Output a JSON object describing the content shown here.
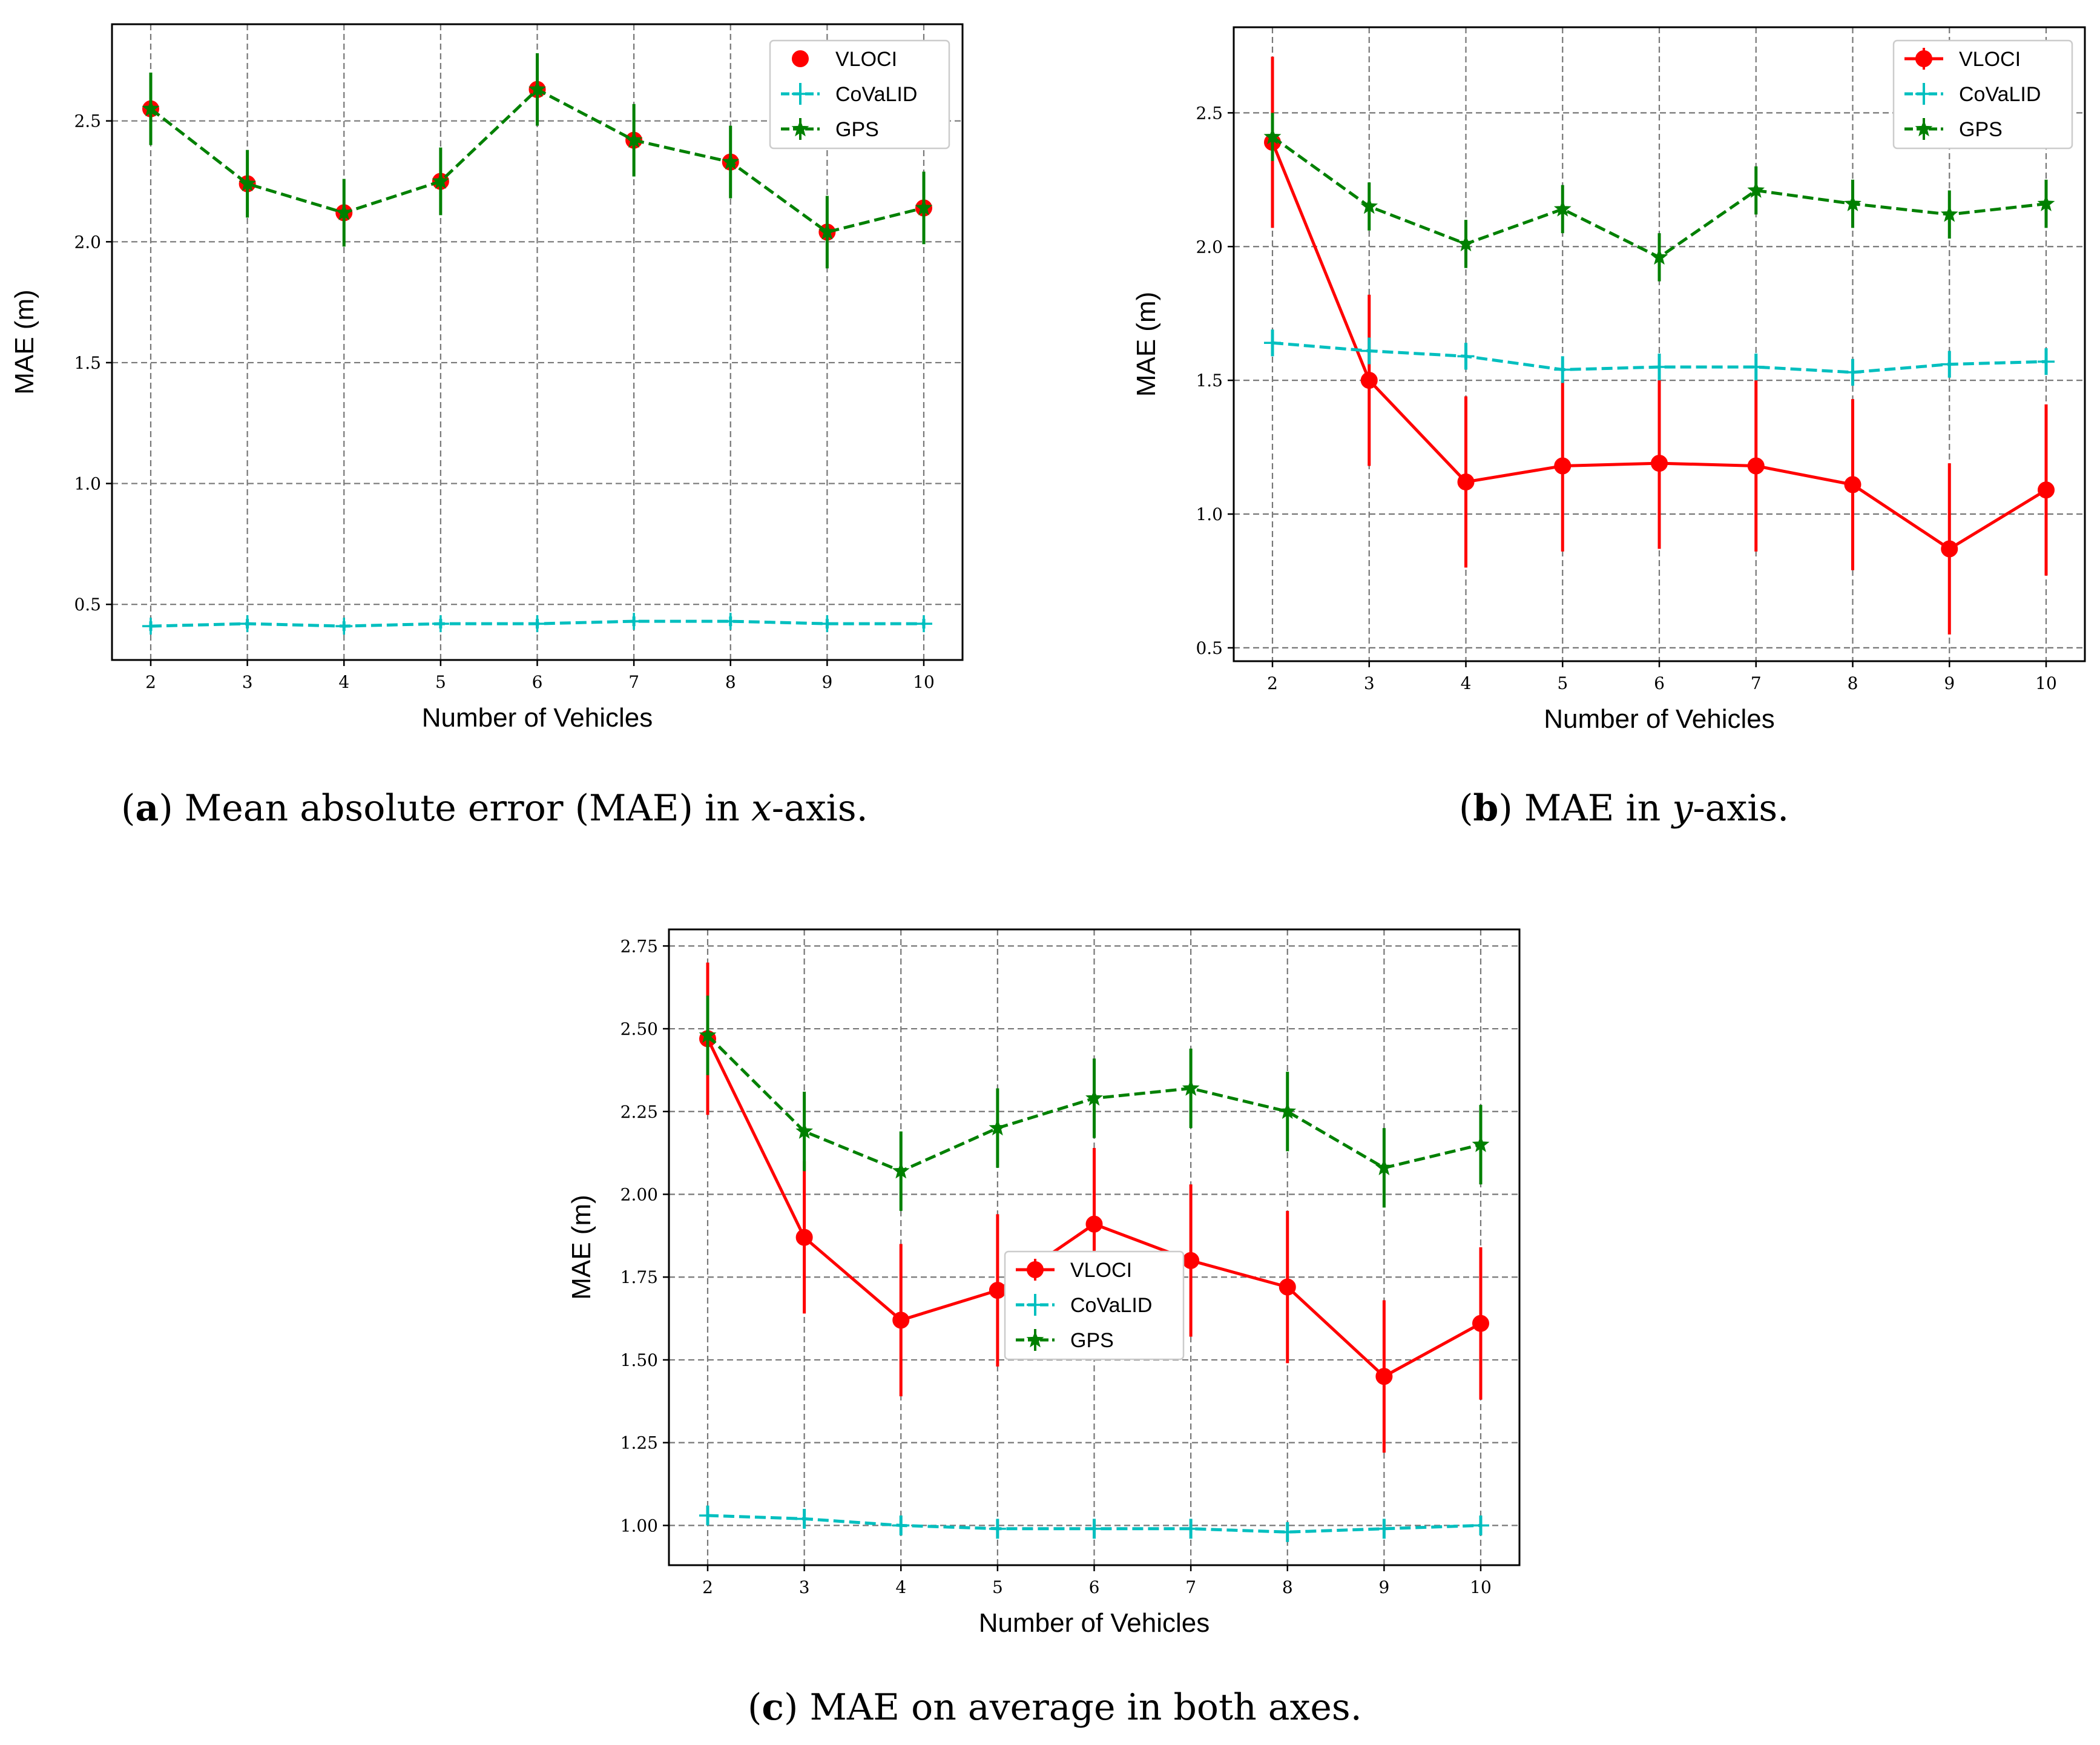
{
  "chart_data": [
    {
      "id": "a",
      "type": "line",
      "xlabel": "Number of Vehicles",
      "ylabel": "MAE (m)",
      "categories": [
        2,
        3,
        4,
        5,
        6,
        7,
        8,
        9,
        10
      ],
      "ylim": [
        0.27,
        2.9
      ],
      "yticks": [
        0.5,
        1.0,
        1.5,
        2.0,
        2.5
      ],
      "ytick_labels": [
        "0.5",
        "1.0",
        "1.5",
        "2.0",
        "2.5"
      ],
      "legend_position": "top-right",
      "series": [
        {
          "name": "VLOCI",
          "color": "#ff0000",
          "style": "solid-circle",
          "show_line": false,
          "values": [
            2.55,
            2.24,
            2.12,
            2.25,
            2.63,
            2.42,
            2.33,
            2.04,
            2.14
          ],
          "errors": [
            0.0,
            0,
            0,
            0,
            0,
            0,
            0,
            0,
            0
          ]
        },
        {
          "name": "CoVaLID",
          "color": "#00bfbf",
          "style": "dashed-plus",
          "values": [
            0.41,
            0.42,
            0.41,
            0.42,
            0.42,
            0.43,
            0.43,
            0.42,
            0.42
          ],
          "errors": [
            0.02,
            0.02,
            0.02,
            0.02,
            0.02,
            0.02,
            0.02,
            0.02,
            0.02
          ]
        },
        {
          "name": "GPS",
          "color": "#008000",
          "style": "dashed-star",
          "values": [
            2.55,
            2.24,
            2.12,
            2.25,
            2.63,
            2.42,
            2.33,
            2.04,
            2.14
          ],
          "errors": [
            0.15,
            0.14,
            0.14,
            0.14,
            0.15,
            0.15,
            0.15,
            0.15,
            0.15
          ]
        }
      ],
      "caption": {
        "tag": "a",
        "before": " Mean absolute error (MAE) in ",
        "var": "x",
        "after": "-axis."
      }
    },
    {
      "id": "b",
      "type": "line",
      "xlabel": "Number of Vehicles",
      "ylabel": "MAE (m)",
      "categories": [
        2,
        3,
        4,
        5,
        6,
        7,
        8,
        9,
        10
      ],
      "ylim": [
        0.45,
        2.82
      ],
      "yticks": [
        0.5,
        1.0,
        1.5,
        2.0,
        2.5
      ],
      "ytick_labels": [
        "0.5",
        "1.0",
        "1.5",
        "2.0",
        "2.5"
      ],
      "legend_position": "top-right",
      "series": [
        {
          "name": "VLOCI",
          "color": "#ff0000",
          "style": "solid-circle",
          "values": [
            2.39,
            1.5,
            1.12,
            1.18,
            1.19,
            1.18,
            1.11,
            0.87,
            1.09
          ],
          "errors": [
            0.32,
            0.32,
            0.32,
            0.32,
            0.32,
            0.32,
            0.32,
            0.32,
            0.32
          ]
        },
        {
          "name": "CoVaLID",
          "color": "#00bfbf",
          "style": "dashed-plus",
          "values": [
            1.64,
            1.61,
            1.59,
            1.54,
            1.55,
            1.55,
            1.53,
            1.56,
            1.57
          ],
          "errors": [
            0.05,
            0.05,
            0.05,
            0.05,
            0.05,
            0.05,
            0.05,
            0.05,
            0.05
          ]
        },
        {
          "name": "GPS",
          "color": "#008000",
          "style": "dashed-star",
          "values": [
            2.41,
            2.15,
            2.01,
            2.14,
            1.96,
            2.21,
            2.16,
            2.12,
            2.16
          ],
          "errors": [
            0.09,
            0.09,
            0.09,
            0.09,
            0.09,
            0.09,
            0.09,
            0.09,
            0.09
          ]
        }
      ],
      "caption": {
        "tag": "b",
        "before": " MAE in ",
        "var": "y",
        "after": "-axis."
      }
    },
    {
      "id": "c",
      "type": "line",
      "xlabel": "Number of Vehicles",
      "ylabel": "MAE (m)",
      "categories": [
        2,
        3,
        4,
        5,
        6,
        7,
        8,
        9,
        10
      ],
      "ylim": [
        0.88,
        2.8
      ],
      "yticks": [
        1.0,
        1.25,
        1.5,
        1.75,
        2.0,
        2.25,
        2.5,
        2.75
      ],
      "ytick_labels": [
        "1.00",
        "1.25",
        "1.50",
        "1.75",
        "2.00",
        "2.25",
        "2.50",
        "2.75"
      ],
      "legend_position": "center",
      "series": [
        {
          "name": "VLOCI",
          "color": "#ff0000",
          "style": "solid-circle",
          "values": [
            2.47,
            1.87,
            1.62,
            1.71,
            1.91,
            1.8,
            1.72,
            1.45,
            1.61
          ],
          "errors": [
            0.23,
            0.23,
            0.23,
            0.23,
            0.23,
            0.23,
            0.23,
            0.23,
            0.23
          ]
        },
        {
          "name": "CoVaLID",
          "color": "#00bfbf",
          "style": "dashed-plus",
          "values": [
            1.03,
            1.02,
            1.0,
            0.99,
            0.99,
            0.99,
            0.98,
            0.99,
            1.0
          ],
          "errors": [
            0.03,
            0.03,
            0.03,
            0.03,
            0.03,
            0.03,
            0.03,
            0.03,
            0.03
          ]
        },
        {
          "name": "GPS",
          "color": "#008000",
          "style": "dashed-star",
          "values": [
            2.48,
            2.19,
            2.07,
            2.2,
            2.29,
            2.32,
            2.25,
            2.08,
            2.15
          ],
          "errors": [
            0.12,
            0.12,
            0.12,
            0.12,
            0.12,
            0.12,
            0.12,
            0.12,
            0.12
          ]
        }
      ],
      "caption": {
        "tag": "c",
        "before": " MAE on average in both axes.",
        "var": "",
        "after": ""
      }
    }
  ]
}
